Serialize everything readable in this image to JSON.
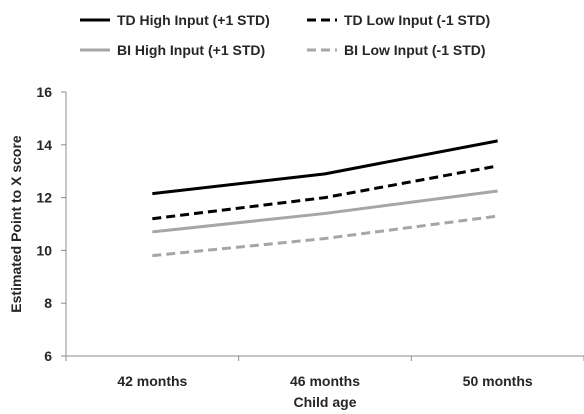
{
  "chart_data": {
    "type": "line",
    "title": "",
    "xlabel": "Child age",
    "ylabel": "Estimated Point to X score",
    "categories": [
      "42 months",
      "46 months",
      "50 months"
    ],
    "ylim": [
      6,
      16
    ],
    "yticks": [
      "6",
      "8",
      "10",
      "12",
      "14",
      "16"
    ],
    "grid": false,
    "legend_position": "top",
    "series": [
      {
        "name": "TD High Input (+1 STD)",
        "values": [
          12.15,
          12.9,
          14.15
        ],
        "color": "#000000",
        "dash": "solid"
      },
      {
        "name": "TD Low Input (-1 STD)",
        "values": [
          11.2,
          12.0,
          13.2
        ],
        "color": "#000000",
        "dash": "dashed"
      },
      {
        "name": "BI High Input (+1 STD)",
        "values": [
          10.7,
          11.4,
          12.25
        ],
        "color": "#a6a6a6",
        "dash": "solid"
      },
      {
        "name": "BI Low Input (-1 STD)",
        "values": [
          9.8,
          10.45,
          11.3
        ],
        "color": "#a6a6a6",
        "dash": "dashed"
      }
    ]
  }
}
